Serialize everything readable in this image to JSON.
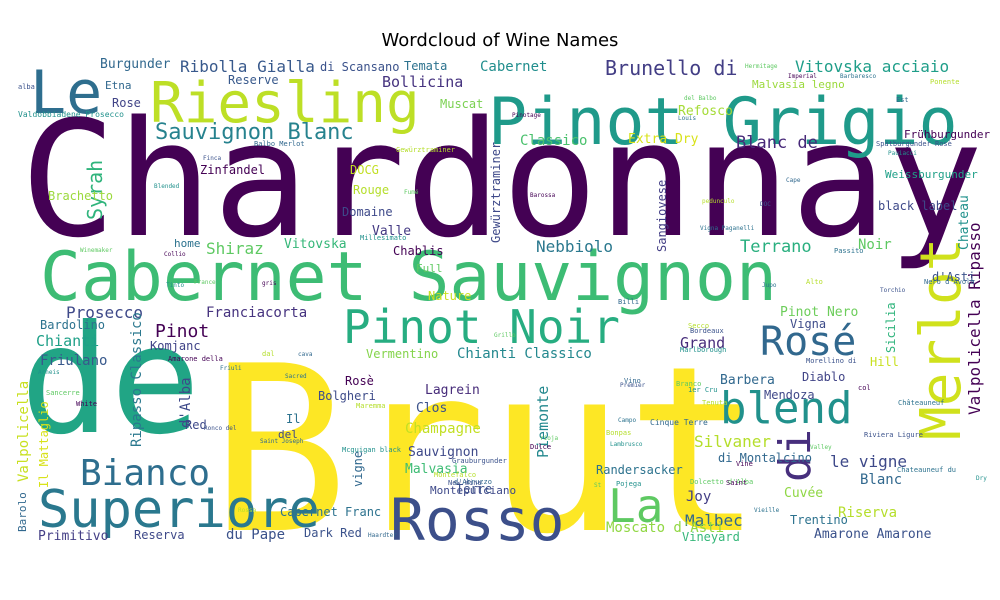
{
  "chart_data": {
    "type": "wordcloud",
    "title": "Wordcloud of Wine Names",
    "words": [
      {
        "text": "Chardonnay",
        "color": "#440154"
      },
      {
        "text": "Brut",
        "color": "#fde725"
      },
      {
        "text": "de",
        "color": "#21a585"
      },
      {
        "text": "Cabernet Sauvignon",
        "color": "#3dbc74"
      },
      {
        "text": "Pinot Grigio",
        "color": "#1f9a8a"
      },
      {
        "text": "Riesling",
        "color": "#bddf26"
      },
      {
        "text": "Le",
        "color": "#2e6e8e"
      },
      {
        "text": "Merlot",
        "color": "#d0e11c"
      },
      {
        "text": "Superiore",
        "color": "#2a788e"
      },
      {
        "text": "Rosso",
        "color": "#3c4f8a"
      },
      {
        "text": "Pinot Noir",
        "color": "#27ad81"
      },
      {
        "text": "blend",
        "color": "#21918c"
      },
      {
        "text": "Rosé",
        "color": "#31688e"
      },
      {
        "text": "Bianco",
        "color": "#2e6e8e"
      },
      {
        "text": "La",
        "color": "#5ec962"
      },
      {
        "text": "di",
        "color": "#472f7d"
      },
      {
        "text": "Sauvignon Blanc",
        "color": "#26828e"
      },
      {
        "text": "Valpolicella Ripasso",
        "color": "#440154"
      },
      {
        "text": "Brunello di",
        "color": "#433e85"
      },
      {
        "text": "Blanc de",
        "color": "#482979"
      },
      {
        "text": "Ribolla Gialla",
        "color": "#38598c"
      },
      {
        "text": "Vitovska acciaio",
        "color": "#1f9e89"
      },
      {
        "text": "Burgunder",
        "color": "#31688e"
      },
      {
        "text": "di Scansano",
        "color": "#3b528b"
      },
      {
        "text": "Temata",
        "color": "#2c728e"
      },
      {
        "text": "Cabernet",
        "color": "#218e8d"
      },
      {
        "text": "Malvasia legno",
        "color": "#9bd93c"
      },
      {
        "text": "Bollicina",
        "color": "#46337f"
      },
      {
        "text": "Reserve",
        "color": "#38598c"
      },
      {
        "text": "Etna",
        "color": "#31688e"
      },
      {
        "text": "Rose",
        "color": "#414487"
      },
      {
        "text": "Muscat",
        "color": "#7ad151"
      },
      {
        "text": "Refosco",
        "color": "#a5db36"
      },
      {
        "text": "Classico",
        "color": "#4ac16d"
      },
      {
        "text": "Extra Dry",
        "color": "#d8e219"
      },
      {
        "text": "Syrah",
        "color": "#2fb47c"
      },
      {
        "text": "Zinfandel",
        "color": "#440154"
      },
      {
        "text": "DOCG",
        "color": "#c2df23"
      },
      {
        "text": "Rouge",
        "color": "#b5de2b"
      },
      {
        "text": "Domaine",
        "color": "#3e4989"
      },
      {
        "text": "Valle",
        "color": "#443a83"
      },
      {
        "text": "Shiraz",
        "color": "#5ec962"
      },
      {
        "text": "Vitovska",
        "color": "#35b779"
      },
      {
        "text": "Chablis",
        "color": "#440154"
      },
      {
        "text": "Nebbiolo",
        "color": "#2a788e"
      },
      {
        "text": "Terrano",
        "color": "#29af7f"
      },
      {
        "text": "Noir",
        "color": "#5ec962"
      },
      {
        "text": "Chateau",
        "color": "#21918c"
      },
      {
        "text": "d'Asti",
        "color": "#3b528b"
      },
      {
        "text": "Prosecco",
        "color": "#3e4989"
      },
      {
        "text": "Franciacorta",
        "color": "#46337f"
      },
      {
        "text": "Pinot",
        "color": "#440154"
      },
      {
        "text": "Bardolino",
        "color": "#2c728e"
      },
      {
        "text": "Chianti",
        "color": "#1fa088"
      },
      {
        "text": "Komjanc",
        "color": "#404387"
      },
      {
        "text": "Friulano",
        "color": "#38598c"
      },
      {
        "text": "Chianti Classico",
        "color": "#23888e"
      },
      {
        "text": "Vermentino",
        "color": "#84d44b"
      },
      {
        "text": "Grand",
        "color": "#472d7b"
      },
      {
        "text": "Pinot Nero",
        "color": "#6ccd5a"
      },
      {
        "text": "Vigna",
        "color": "#3e4c8a"
      },
      {
        "text": "Sicilia",
        "color": "#2fb47c"
      },
      {
        "text": "Hill",
        "color": "#c8e020"
      },
      {
        "text": "Barbera",
        "color": "#31688e"
      },
      {
        "text": "Diablo",
        "color": "#414487"
      },
      {
        "text": "Mendoza",
        "color": "#3f4788"
      },
      {
        "text": "Ripasso Classico",
        "color": "#2a788e"
      },
      {
        "text": "Valpolicella",
        "color": "#c8e020"
      },
      {
        "text": "Il Mattaglio",
        "color": "#d8e219"
      },
      {
        "text": "Piemonte",
        "color": "#23888e"
      },
      {
        "text": "Lagrein",
        "color": "#472c7a"
      },
      {
        "text": "Bolgheri",
        "color": "#3e4c8a"
      },
      {
        "text": "Rosè",
        "color": "#440154"
      },
      {
        "text": "Clos",
        "color": "#3b528b"
      },
      {
        "text": "Champagne",
        "color": "#c2df23"
      },
      {
        "text": "Sauvignon",
        "color": "#3e4989"
      },
      {
        "text": "Malvasia",
        "color": "#3dbc74"
      },
      {
        "text": "Silvaner",
        "color": "#b5de2b"
      },
      {
        "text": "di Montalcino",
        "color": "#31688e"
      },
      {
        "text": "le vigne",
        "color": "#3e4989"
      },
      {
        "text": "Blanc",
        "color": "#31688e"
      },
      {
        "text": "Red",
        "color": "#3e4989"
      },
      {
        "text": "d'Alba",
        "color": "#3e4989"
      },
      {
        "text": "Il",
        "color": "#2c728e"
      },
      {
        "text": "del",
        "color": "#3e4989"
      },
      {
        "text": "vigne",
        "color": "#31688e"
      },
      {
        "text": "Randersacker",
        "color": "#2c728e"
      },
      {
        "text": "Terre",
        "color": "#3b528b"
      },
      {
        "text": "Montepulciano",
        "color": "#3e4989"
      },
      {
        "text": "Joy",
        "color": "#433e85"
      },
      {
        "text": "Malbec",
        "color": "#31688e"
      },
      {
        "text": "Riserva",
        "color": "#b5de2b"
      },
      {
        "text": "Cuvée",
        "color": "#8fd744"
      },
      {
        "text": "Trentino",
        "color": "#2c728e"
      },
      {
        "text": "Moscato d'Asti",
        "color": "#90d743"
      },
      {
        "text": "Vineyard",
        "color": "#35b779"
      },
      {
        "text": "Amarone Amarone",
        "color": "#3b528b"
      },
      {
        "text": "Cabernet Franc",
        "color": "#2c728e"
      },
      {
        "text": "Dark Red",
        "color": "#3b528b"
      },
      {
        "text": "du Pape",
        "color": "#3b528b"
      },
      {
        "text": "Reserva",
        "color": "#3e4989"
      },
      {
        "text": "Primitivo",
        "color": "#433e85"
      },
      {
        "text": "Barolo",
        "color": "#31688e"
      },
      {
        "text": "Brachetto",
        "color": "#9bd93c"
      },
      {
        "text": "home",
        "color": "#2c728e"
      },
      {
        "text": "Full",
        "color": "#5ec962"
      },
      {
        "text": "Nature",
        "color": "#c8e020"
      },
      {
        "text": "Sangiovese",
        "color": "#433e85"
      },
      {
        "text": "Gewürztraminer",
        "color": "#3e4989"
      },
      {
        "text": "Weissburgunder",
        "color": "#1fa088"
      },
      {
        "text": "Frühburgunder",
        "color": "#440154"
      },
      {
        "text": "black label",
        "color": "#3e4989"
      },
      {
        "text": "d",
        "color": "#3b528b"
      }
    ],
    "small_words": [
      "alba",
      "Valdobbiadene Prosecco",
      "Hermitage",
      "Imperial",
      "Barbaresco",
      "Ponente",
      "Est",
      "Spätburgunder Rosè",
      "Pauiacci",
      "del Balbo",
      "Pinotage",
      "Louis",
      "Gewürztraminer",
      "Balbo Merlot",
      "Finca",
      "Blended",
      "Fumé",
      "Barossa",
      "Vigna Paganelli",
      "pedunculo",
      "Cape",
      "DOC",
      "Millesimato",
      "Winemaker",
      "Collio",
      "Passito",
      "Alto",
      "Nero d'Avola",
      "Torchio",
      "Tinto",
      "France",
      "gris",
      "Jupo",
      "Secco",
      "Billi",
      "Bordeaux",
      "Marlborough",
      "Grillo",
      "Amarone della",
      "Friuli",
      "dal",
      "cava",
      "Morellino di",
      "Arneis",
      "Sancerre",
      "White",
      "Sacred",
      "Maremma",
      "Vino",
      "Premier",
      "1er Cru",
      "Branco",
      "col",
      "Châteauneuf",
      "Tenuta",
      "Saint Joseph",
      "Ronco del",
      "Mcguigan black",
      "rioja",
      "Dulce",
      "Campo",
      "Bonpas",
      "Cinque Terre",
      "Riviera Ligure",
      "Lambrusco",
      "Valley",
      "Vine",
      "Chateauneuf du",
      "Montefalco",
      "d'Abruzzo",
      "Grauburgunder",
      "Pojega",
      "Dolcetto d'Alba",
      "Saint",
      "Vieille",
      "Rossa",
      "Haardter",
      "New Wine",
      "Dry",
      "St"
    ]
  }
}
